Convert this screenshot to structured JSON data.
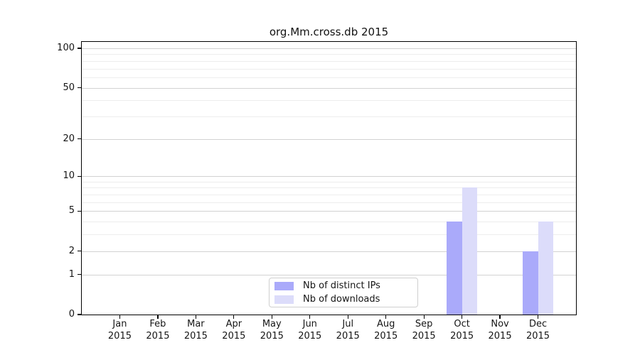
{
  "title": "org.Mm.cross.db 2015",
  "colors": {
    "distinct_ips_bar": "#aaaafa",
    "downloads_bar": "#dcdcfa",
    "grid_major": "#d2d2d2",
    "grid_minor": "#ededed",
    "axis": "#000000",
    "text": "#151515",
    "legend_border": "#cfcfcf"
  },
  "chart_data": {
    "type": "bar",
    "title": "org.Mm.cross.db 2015",
    "categories": [
      "Jan 2015",
      "Feb 2015",
      "Mar 2015",
      "Apr 2015",
      "May 2015",
      "Jun 2015",
      "Jul 2015",
      "Aug 2015",
      "Sep 2015",
      "Oct 2015",
      "Nov 2015",
      "Dec 2015"
    ],
    "x": {
      "months": [
        "Jan",
        "Feb",
        "Mar",
        "Apr",
        "May",
        "Jun",
        "Jul",
        "Aug",
        "Sep",
        "Oct",
        "Nov",
        "Dec"
      ],
      "year": "2015"
    },
    "series": [
      {
        "name": "Nb of distinct IPs",
        "color": "#aaaafa",
        "values": [
          0,
          0,
          0,
          0,
          0,
          0,
          0,
          0,
          0,
          4,
          0,
          2
        ]
      },
      {
        "name": "Nb of downloads",
        "color": "#dcdcfa",
        "values": [
          0,
          0,
          0,
          0,
          0,
          0,
          0,
          0,
          0,
          8,
          0,
          4
        ]
      }
    ],
    "y_axis": {
      "scale": "log10(1+value)",
      "tick_values": [
        0,
        1,
        2,
        5,
        10,
        20,
        50,
        100
      ],
      "tick_labels": [
        "0",
        "1",
        "2",
        "5",
        "10",
        "20",
        "50",
        "100"
      ],
      "minor_gridline_values": [
        3,
        4,
        6,
        7,
        8,
        9,
        30,
        40,
        60,
        70,
        80,
        90
      ],
      "range": [
        0,
        112
      ]
    },
    "grid": true,
    "legend_position": "lower center"
  }
}
